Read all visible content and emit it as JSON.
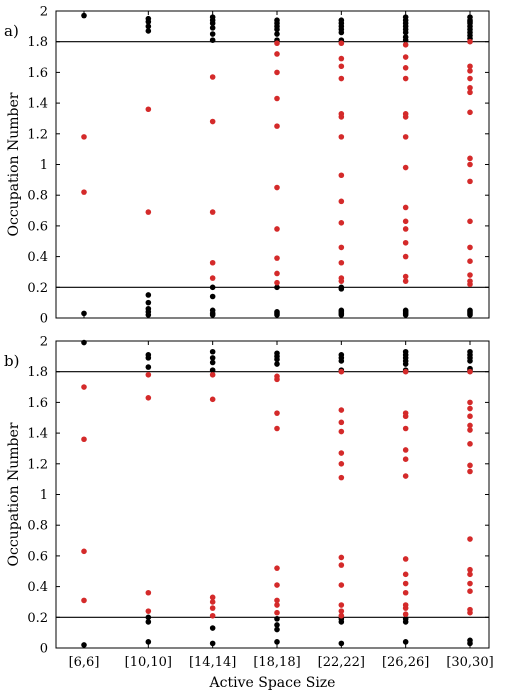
{
  "chart_data": [
    {
      "type": "scatter",
      "panel_label": "a)",
      "ylabel": "Occupation Number",
      "xlabel": "",
      "ylim": [
        0,
        2
      ],
      "yticks": [
        "0",
        "0.2",
        "0.4",
        "0.6",
        "0.8",
        "1",
        "1.2",
        "1.4",
        "1.6",
        "1.8",
        "2"
      ],
      "categories": [
        "[6,6]",
        "[10,10]",
        "[14,14]",
        "[18,18]",
        "[22,22]",
        "[26,26]",
        "[30,30]"
      ],
      "threshold_lines": [
        0.2,
        1.8
      ],
      "grid": false,
      "colors": {
        "outside_threshold": "#000000",
        "inside_threshold": "#d42a2a"
      },
      "series": [
        {
          "color": "black",
          "points": [
            [
              0,
              1.97
            ],
            [
              0,
              0.03
            ],
            [
              1,
              1.95
            ],
            [
              1,
              1.93
            ],
            [
              1,
              1.9
            ],
            [
              1,
              1.87
            ],
            [
              1,
              0.15
            ],
            [
              1,
              0.1
            ],
            [
              1,
              0.06
            ],
            [
              1,
              0.04
            ],
            [
              1,
              0.02
            ],
            [
              2,
              1.96
            ],
            [
              2,
              1.94
            ],
            [
              2,
              1.92
            ],
            [
              2,
              1.89
            ],
            [
              2,
              1.85
            ],
            [
              2,
              1.81
            ],
            [
              2,
              0.2
            ],
            [
              2,
              0.14
            ],
            [
              2,
              0.05
            ],
            [
              2,
              0.03
            ],
            [
              2,
              0.02
            ],
            [
              3,
              1.94
            ],
            [
              3,
              1.92
            ],
            [
              3,
              1.9
            ],
            [
              3,
              1.88
            ],
            [
              3,
              1.85
            ],
            [
              3,
              1.81
            ],
            [
              3,
              0.2
            ],
            [
              3,
              0.04
            ],
            [
              3,
              0.03
            ],
            [
              3,
              0.02
            ],
            [
              4,
              1.94
            ],
            [
              4,
              1.92
            ],
            [
              4,
              1.9
            ],
            [
              4,
              1.88
            ],
            [
              4,
              1.86
            ],
            [
              4,
              1.81
            ],
            [
              4,
              0.2
            ],
            [
              4,
              0.19
            ],
            [
              4,
              0.05
            ],
            [
              4,
              0.04
            ],
            [
              4,
              0.03
            ],
            [
              4,
              0.02
            ],
            [
              5,
              1.96
            ],
            [
              5,
              1.94
            ],
            [
              5,
              1.92
            ],
            [
              5,
              1.9
            ],
            [
              5,
              1.88
            ],
            [
              5,
              1.86
            ],
            [
              5,
              1.83
            ],
            [
              5,
              1.81
            ],
            [
              5,
              0.05
            ],
            [
              5,
              0.04
            ],
            [
              5,
              0.03
            ],
            [
              5,
              0.02
            ],
            [
              6,
              1.96
            ],
            [
              6,
              1.94
            ],
            [
              6,
              1.93
            ],
            [
              6,
              1.92
            ],
            [
              6,
              1.9
            ],
            [
              6,
              1.88
            ],
            [
              6,
              1.86
            ],
            [
              6,
              1.84
            ],
            [
              6,
              1.82
            ],
            [
              6,
              0.05
            ],
            [
              6,
              0.04
            ],
            [
              6,
              0.03
            ],
            [
              6,
              0.02
            ]
          ]
        },
        {
          "color": "red",
          "points": [
            [
              0,
              1.18
            ],
            [
              0,
              0.82
            ],
            [
              1,
              1.36
            ],
            [
              1,
              0.69
            ],
            [
              2,
              1.57
            ],
            [
              2,
              1.28
            ],
            [
              2,
              0.69
            ],
            [
              2,
              0.36
            ],
            [
              2,
              0.26
            ],
            [
              3,
              1.79
            ],
            [
              3,
              1.72
            ],
            [
              3,
              1.6
            ],
            [
              3,
              1.43
            ],
            [
              3,
              1.25
            ],
            [
              3,
              0.85
            ],
            [
              3,
              0.58
            ],
            [
              3,
              0.39
            ],
            [
              3,
              0.29
            ],
            [
              3,
              0.23
            ],
            [
              4,
              1.79
            ],
            [
              4,
              1.69
            ],
            [
              4,
              1.64
            ],
            [
              4,
              1.56
            ],
            [
              4,
              1.33
            ],
            [
              4,
              1.31
            ],
            [
              4,
              1.18
            ],
            [
              4,
              0.93
            ],
            [
              4,
              0.76
            ],
            [
              4,
              0.62
            ],
            [
              4,
              0.46
            ],
            [
              4,
              0.36
            ],
            [
              4,
              0.26
            ],
            [
              4,
              0.24
            ],
            [
              5,
              1.78
            ],
            [
              5,
              1.7
            ],
            [
              5,
              1.63
            ],
            [
              5,
              1.56
            ],
            [
              5,
              1.33
            ],
            [
              5,
              1.31
            ],
            [
              5,
              1.18
            ],
            [
              5,
              0.98
            ],
            [
              5,
              0.72
            ],
            [
              5,
              0.63
            ],
            [
              5,
              0.58
            ],
            [
              5,
              0.49
            ],
            [
              5,
              0.4
            ],
            [
              5,
              0.27
            ],
            [
              5,
              0.24
            ],
            [
              6,
              1.8
            ],
            [
              6,
              1.64
            ],
            [
              6,
              1.61
            ],
            [
              6,
              1.56
            ],
            [
              6,
              1.5
            ],
            [
              6,
              1.47
            ],
            [
              6,
              1.34
            ],
            [
              6,
              1.04
            ],
            [
              6,
              1.0
            ],
            [
              6,
              0.89
            ],
            [
              6,
              0.63
            ],
            [
              6,
              0.46
            ],
            [
              6,
              0.37
            ],
            [
              6,
              0.28
            ],
            [
              6,
              0.24
            ],
            [
              6,
              0.22
            ]
          ]
        }
      ]
    },
    {
      "type": "scatter",
      "panel_label": "b)",
      "ylabel": "Occupation Number",
      "xlabel": "Active Space Size",
      "ylim": [
        0,
        2
      ],
      "yticks": [
        "0",
        "0.2",
        "0.4",
        "0.6",
        "0.8",
        "1",
        "1.2",
        "1.4",
        "1.6",
        "1.8",
        "2"
      ],
      "categories": [
        "[6,6]",
        "[10,10]",
        "[14,14]",
        "[18,18]",
        "[22,22]",
        "[26,26]",
        "[30,30]"
      ],
      "threshold_lines": [
        0.2,
        1.8
      ],
      "grid": false,
      "colors": {
        "outside_threshold": "#000000",
        "inside_threshold": "#d42a2a"
      },
      "series": [
        {
          "color": "black",
          "points": [
            [
              0,
              1.99
            ],
            [
              0,
              0.02
            ],
            [
              1,
              1.91
            ],
            [
              1,
              1.89
            ],
            [
              1,
              1.83
            ],
            [
              1,
              0.2
            ],
            [
              1,
              0.17
            ],
            [
              1,
              0.04
            ],
            [
              2,
              1.93
            ],
            [
              2,
              1.89
            ],
            [
              2,
              1.86
            ],
            [
              2,
              1.81
            ],
            [
              2,
              0.13
            ],
            [
              2,
              0.03
            ],
            [
              3,
              1.92
            ],
            [
              3,
              1.9
            ],
            [
              3,
              1.88
            ],
            [
              3,
              1.85
            ],
            [
              3,
              0.19
            ],
            [
              3,
              0.15
            ],
            [
              3,
              0.12
            ],
            [
              3,
              0.04
            ],
            [
              4,
              1.91
            ],
            [
              4,
              1.89
            ],
            [
              4,
              1.87
            ],
            [
              4,
              1.81
            ],
            [
              4,
              0.19
            ],
            [
              4,
              0.17
            ],
            [
              4,
              0.03
            ],
            [
              5,
              1.93
            ],
            [
              5,
              1.91
            ],
            [
              5,
              1.89
            ],
            [
              5,
              1.87
            ],
            [
              5,
              1.85
            ],
            [
              5,
              1.81
            ],
            [
              5,
              0.19
            ],
            [
              5,
              0.17
            ],
            [
              5,
              0.04
            ],
            [
              6,
              1.93
            ],
            [
              6,
              1.91
            ],
            [
              6,
              1.89
            ],
            [
              6,
              1.87
            ],
            [
              6,
              1.82
            ],
            [
              6,
              1.81
            ],
            [
              6,
              0.05
            ],
            [
              6,
              0.03
            ]
          ]
        },
        {
          "color": "red",
          "points": [
            [
              0,
              1.7
            ],
            [
              0,
              1.36
            ],
            [
              0,
              0.63
            ],
            [
              0,
              0.31
            ],
            [
              1,
              1.78
            ],
            [
              1,
              1.63
            ],
            [
              1,
              0.36
            ],
            [
              1,
              0.24
            ],
            [
              2,
              1.78
            ],
            [
              2,
              1.62
            ],
            [
              2,
              0.33
            ],
            [
              2,
              0.3
            ],
            [
              2,
              0.26
            ],
            [
              2,
              0.21
            ],
            [
              3,
              1.77
            ],
            [
              3,
              1.75
            ],
            [
              3,
              1.53
            ],
            [
              3,
              1.43
            ],
            [
              3,
              0.52
            ],
            [
              3,
              0.41
            ],
            [
              3,
              0.31
            ],
            [
              3,
              0.28
            ],
            [
              3,
              0.23
            ],
            [
              4,
              1.8
            ],
            [
              4,
              1.55
            ],
            [
              4,
              1.47
            ],
            [
              4,
              1.41
            ],
            [
              4,
              1.27
            ],
            [
              4,
              1.2
            ],
            [
              4,
              1.11
            ],
            [
              4,
              0.59
            ],
            [
              4,
              0.54
            ],
            [
              4,
              0.41
            ],
            [
              4,
              0.28
            ],
            [
              4,
              0.24
            ],
            [
              4,
              0.21
            ],
            [
              5,
              1.8
            ],
            [
              5,
              1.53
            ],
            [
              5,
              1.51
            ],
            [
              5,
              1.43
            ],
            [
              5,
              1.29
            ],
            [
              5,
              1.23
            ],
            [
              5,
              1.12
            ],
            [
              5,
              0.58
            ],
            [
              5,
              0.48
            ],
            [
              5,
              0.42
            ],
            [
              5,
              0.36
            ],
            [
              5,
              0.28
            ],
            [
              5,
              0.26
            ],
            [
              5,
              0.22
            ],
            [
              6,
              1.8
            ],
            [
              6,
              1.6
            ],
            [
              6,
              1.56
            ],
            [
              6,
              1.51
            ],
            [
              6,
              1.45
            ],
            [
              6,
              1.42
            ],
            [
              6,
              1.33
            ],
            [
              6,
              1.19
            ],
            [
              6,
              1.15
            ],
            [
              6,
              0.71
            ],
            [
              6,
              0.51
            ],
            [
              6,
              0.48
            ],
            [
              6,
              0.42
            ],
            [
              6,
              0.37
            ],
            [
              6,
              0.25
            ],
            [
              6,
              0.23
            ]
          ]
        }
      ]
    }
  ]
}
